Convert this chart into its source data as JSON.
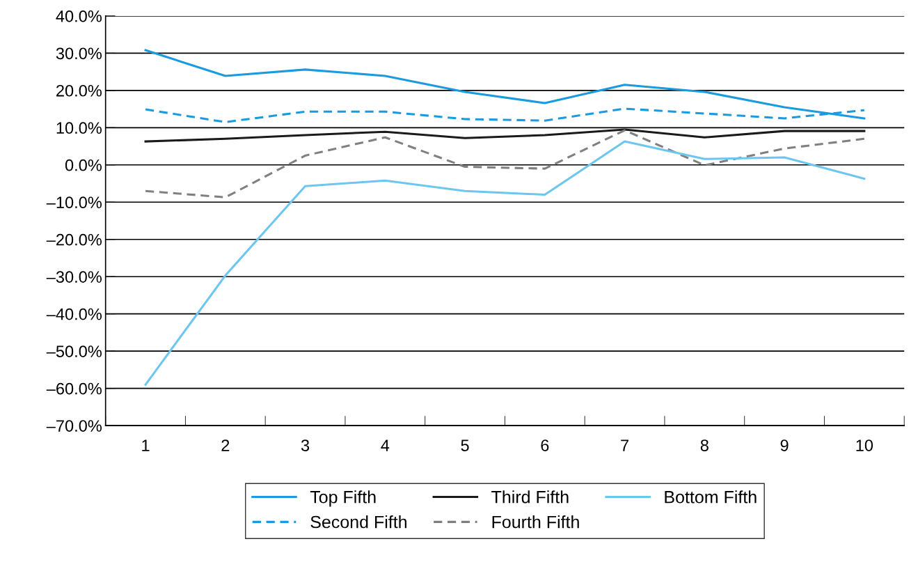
{
  "chart_data": {
    "type": "line",
    "categories": [
      "1",
      "2",
      "3",
      "4",
      "5",
      "6",
      "7",
      "8",
      "9",
      "10"
    ],
    "series": [
      {
        "name": "Top Fifth",
        "color": "#1a9be0",
        "line_style": "solid",
        "values": [
          30.8,
          23.9,
          25.6,
          23.9,
          19.6,
          16.6,
          21.5,
          19.6,
          15.5,
          12.5
        ]
      },
      {
        "name": "Second Fifth",
        "color": "#1a9be0",
        "line_style": "dashed",
        "values": [
          14.9,
          11.5,
          14.3,
          14.3,
          12.3,
          11.9,
          15.1,
          13.8,
          12.5,
          14.7
        ]
      },
      {
        "name": "Third Fifth",
        "color": "#1a1a1a",
        "line_style": "solid",
        "values": [
          6.3,
          7.0,
          8.0,
          8.9,
          7.2,
          8.0,
          9.5,
          7.4,
          9.1,
          9.1
        ]
      },
      {
        "name": "Fourth Fifth",
        "color": "#808080",
        "line_style": "dashed",
        "values": [
          -7.0,
          -8.7,
          2.5,
          7.4,
          -0.5,
          -1.0,
          9.3,
          -0.1,
          4.4,
          7.0
        ]
      },
      {
        "name": "Bottom Fifth",
        "color": "#6cc6f0",
        "line_style": "solid",
        "values": [
          -59.0,
          -29.7,
          -5.7,
          -4.2,
          -7.0,
          -8.0,
          6.3,
          1.6,
          2.0,
          -3.7
        ]
      }
    ],
    "ylim": [
      -70,
      40
    ],
    "yticks": [
      {
        "value": -70,
        "label": "–70.0%"
      },
      {
        "value": -60,
        "label": "–60.0%"
      },
      {
        "value": -50,
        "label": "–50.0%"
      },
      {
        "value": -40,
        "label": "–40.0%"
      },
      {
        "value": -30,
        "label": "–30.0%"
      },
      {
        "value": -20,
        "label": "–20.0%"
      },
      {
        "value": -10,
        "label": "–10.0%"
      },
      {
        "value": 0,
        "label": "0.0%"
      },
      {
        "value": 10,
        "label": "10.0%"
      },
      {
        "value": 20,
        "label": "20.0%"
      },
      {
        "value": 30,
        "label": "30.0%"
      },
      {
        "value": 40,
        "label": "40.0%"
      }
    ],
    "grid": "y",
    "legend": "bottom",
    "marker": "none"
  }
}
